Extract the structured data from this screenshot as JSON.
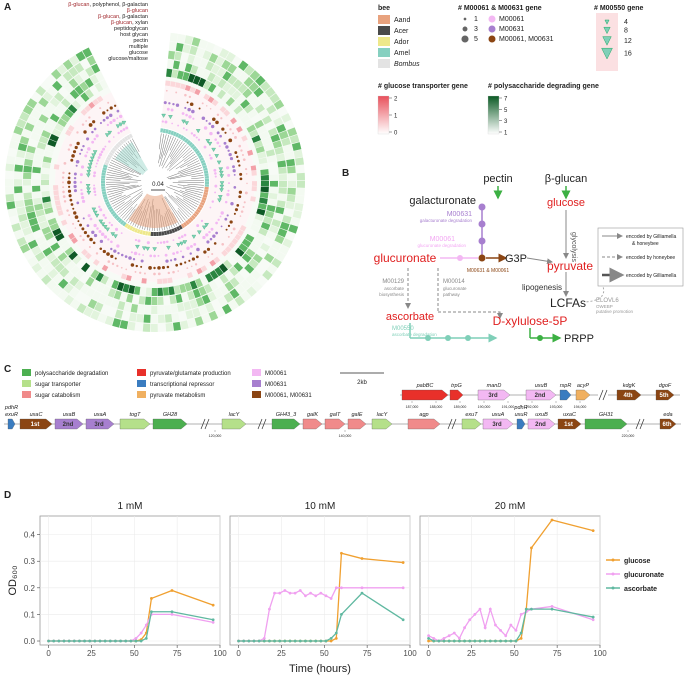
{
  "panel_a": {
    "label": "A",
    "ring_labels": [
      [
        "β-glucan",
        ", polyphenol, β-galactan"
      ],
      [
        "β-glucan"
      ],
      [
        "β-glucan",
        ", β-galactan"
      ],
      [
        "β-glucan",
        ", xylan"
      ],
      [
        "peptidoglycan"
      ],
      [
        "host glycan"
      ],
      [
        "pectin"
      ],
      [
        "multiple"
      ],
      [
        "glucose"
      ],
      [
        "glucose/maltose"
      ]
    ],
    "tree_scale": "0.04",
    "bee_legend": {
      "title": "bee",
      "items": [
        {
          "name": "Aand",
          "color": "#e8a27e"
        },
        {
          "name": "Acer",
          "color": "#4a4a4a"
        },
        {
          "name": "Ador",
          "color": "#eee88a"
        },
        {
          "name": "Amel",
          "color": "#86d0c0"
        },
        {
          "name": "Bombus",
          "color": "#e3e3e3"
        }
      ]
    },
    "module_legend": {
      "title": "# M00061 & M00631 gene",
      "sizes": [
        1,
        3,
        5
      ],
      "items": [
        {
          "name": "M00061",
          "color": "#f3b8f3"
        },
        {
          "name": "M00631",
          "color": "#a77fcf"
        },
        {
          "name": "M00061, M00631",
          "color": "#8b4513"
        }
      ]
    },
    "m00550_legend": {
      "title": "# M00550 gene",
      "sizes": [
        4,
        8,
        12,
        16
      ],
      "color": "#7fcfb8"
    },
    "transporter_legend": {
      "title": "# glucose transporter gene",
      "ticks": [
        2,
        1,
        0
      ],
      "colors": [
        "#e8505b",
        "#ffffff"
      ]
    },
    "poly_legend": {
      "title": "# polysaccharide degrading gene",
      "ticks": [
        7,
        5,
        3,
        1
      ],
      "colors": [
        "#0b5a24",
        "#ffffff"
      ]
    }
  },
  "panel_b": {
    "label": "B",
    "labels": [
      "pectin",
      "β-glucan",
      "galacturonate",
      "glucose",
      "M00631",
      "galacturonate degradation",
      "M00061",
      "glucuronate degradation",
      "glycolysis",
      "G3P",
      "glucuronate",
      "pyruvate",
      "M00631 & M00061",
      "lipogenesis",
      "LCFAs",
      "M00129",
      "ascorbate",
      "biosynthesis",
      "M00014",
      "glucuronate",
      "pathway",
      "ELOVL6",
      "OWEBP",
      "putative promotion",
      "ascorbate",
      "M00550",
      "ascorbate degradation",
      "D-xylulose-5P",
      "PRPP"
    ],
    "legend": [
      "encoded by Gilliamella",
      "& honeybee",
      "encoded by honeybee",
      "encoded by Gilliamella"
    ]
  },
  "panel_c": {
    "label": "C",
    "legend": [
      {
        "name": "polysaccharide degradation",
        "color": "#4caf50"
      },
      {
        "name": "sugar transporter",
        "color": "#b5e08a"
      },
      {
        "name": "sugar catabolism",
        "color": "#f08a8a"
      },
      {
        "name": "pyruvate/glutamate production",
        "color": "#e8302a"
      },
      {
        "name": "transcriptional repressor",
        "color": "#3a7cc0"
      },
      {
        "name": "pyruvate metabolism",
        "color": "#f0b060"
      },
      {
        "name": "M00061",
        "color": "#f3b8f3"
      },
      {
        "name": "M00631",
        "color": "#a77fcf"
      },
      {
        "name": "M00061, M00631",
        "color": "#8b4513"
      }
    ],
    "scale": "2kb",
    "top_genes": [
      {
        "name": "pabBC",
        "color": "#e8302a"
      },
      {
        "name": "trpG",
        "color": "#e8302a"
      },
      {
        "name": "manD",
        "rank": "3rd",
        "color": "#f3b8f3"
      },
      {
        "name": "uxuB",
        "rank": "2nd",
        "color": "#f3b8f3"
      },
      {
        "name": "rspR",
        "color": "#3a7cc0"
      },
      {
        "name": "acyP",
        "color": "#f0b060"
      },
      {
        "name": "kdgK",
        "rank": "4th",
        "color": "#8b4513"
      },
      {
        "name": "dgoF",
        "rank": "5th",
        "color": "#8b4513"
      }
    ],
    "top_ticks": [
      "187,000",
      "188,000",
      "189,000",
      "190,000",
      "191,000",
      "192,000",
      "193,000",
      "194,000"
    ],
    "bottom_genes": [
      {
        "name": "exuR",
        "above": "pdhR",
        "color": "#3a7cc0"
      },
      {
        "name": "uxaC",
        "rank": "1st",
        "color": "#8b4513"
      },
      {
        "name": "uxaB",
        "rank": "2nd",
        "color": "#a77fcf"
      },
      {
        "name": "uxaA",
        "rank": "3rd",
        "color": "#a77fcf"
      },
      {
        "name": "togT",
        "color": "#b5e08a"
      },
      {
        "name": "GH28",
        "color": "#4caf50"
      },
      {
        "name": "lacY",
        "color": "#b5e08a"
      },
      {
        "name": "GH43_3",
        "color": "#4caf50"
      },
      {
        "name": "galK",
        "color": "#f08a8a"
      },
      {
        "name": "galT",
        "color": "#f08a8a"
      },
      {
        "name": "galE",
        "color": "#f08a8a"
      },
      {
        "name": "lacY",
        "color": "#b5e08a"
      },
      {
        "name": "agp",
        "color": "#f08a8a"
      },
      {
        "name": "exuT",
        "color": "#b5e08a"
      },
      {
        "name": "uxuA",
        "rank": "3rd",
        "color": "#f3b8f3"
      },
      {
        "name": "uxuR",
        "above": "pdhR",
        "color": "#3a7cc0"
      },
      {
        "name": "uxuB",
        "rank": "2nd",
        "color": "#f3b8f3"
      },
      {
        "name": "uxaC",
        "rank": "1st",
        "color": "#8b4513"
      },
      {
        "name": "GH31",
        "color": "#4caf50"
      },
      {
        "name": "eda",
        "rank": "6th",
        "color": "#8b4513"
      }
    ],
    "bottom_ticks": [
      "120,000",
      "140,000",
      "220,000"
    ]
  },
  "panel_d": {
    "label": "D"
  },
  "chart_data": [
    {
      "type": "line",
      "title": "1 mM",
      "y_label": "OD₆₀₀",
      "x": [
        0,
        3,
        6,
        9,
        12,
        15,
        18,
        21,
        24,
        27,
        30,
        33,
        36,
        39,
        42,
        45,
        48,
        51,
        54,
        57,
        60,
        72,
        96
      ],
      "xlim": [
        -5,
        100
      ],
      "xticks": [
        0,
        25,
        50,
        75,
        100
      ],
      "ylim": [
        -0.015,
        0.47
      ],
      "yticks": [
        {
          "value": 0,
          "label": "0.0"
        },
        {
          "value": 0.1,
          "label": "0.1"
        },
        {
          "value": 0.2,
          "label": "0.2"
        },
        {
          "value": 0.3,
          "label": "0.3"
        },
        {
          "value": 0.4,
          "label": "0.4"
        }
      ],
      "grid": true,
      "series": [
        {
          "name": "glucose",
          "color": "#f0a030",
          "values": [
            0,
            0,
            0,
            0,
            0,
            0,
            0,
            0,
            0,
            0,
            0,
            0,
            0,
            0,
            0,
            0,
            0,
            0,
            0.005,
            0.03,
            0.16,
            0.19,
            0.135
          ]
        },
        {
          "name": "glucuronate",
          "color": "#f0a0f0",
          "values": [
            0,
            0,
            0,
            0,
            0,
            0,
            0,
            0,
            0,
            0,
            0,
            0,
            0,
            0,
            0,
            0,
            0,
            0.01,
            0.03,
            0.06,
            0.1,
            0.1,
            0.07
          ]
        },
        {
          "name": "ascorbate",
          "color": "#5fb8a0",
          "values": [
            0,
            0,
            0,
            0,
            0,
            0,
            0,
            0,
            0,
            0,
            0,
            0,
            0,
            0,
            0,
            0,
            0,
            0,
            0,
            0.01,
            0.11,
            0.11,
            0.08
          ]
        }
      ]
    },
    {
      "type": "line",
      "title": "10 mM",
      "x_label": "Time (hours)",
      "x": [
        0,
        3,
        6,
        9,
        12,
        15,
        18,
        21,
        24,
        27,
        30,
        33,
        36,
        39,
        42,
        45,
        48,
        51,
        54,
        57,
        60,
        72,
        96
      ],
      "xlim": [
        -5,
        100
      ],
      "xticks": [
        0,
        25,
        50,
        75,
        100
      ],
      "ylim": [
        -0.015,
        0.47
      ],
      "yticks": [
        {
          "value": 0,
          "label": "0.0"
        },
        {
          "value": 0.1,
          "label": "0.1"
        },
        {
          "value": 0.2,
          "label": "0.2"
        },
        {
          "value": 0.3,
          "label": "0.3"
        },
        {
          "value": 0.4,
          "label": "0.4"
        }
      ],
      "grid": true,
      "series": [
        {
          "name": "glucose",
          "color": "#f0a030",
          "values": [
            0,
            0,
            0,
            0,
            0,
            0,
            0,
            0,
            0,
            0,
            0,
            0,
            0,
            0,
            0,
            0,
            0,
            0,
            0,
            0.01,
            0.33,
            0.31,
            0.295
          ]
        },
        {
          "name": "glucuronate",
          "color": "#f0a0f0",
          "values": [
            0,
            0,
            0,
            0,
            0,
            0.01,
            0.12,
            0.18,
            0.18,
            0.19,
            0.18,
            0.18,
            0.19,
            0.17,
            0.18,
            0.17,
            0.18,
            0.17,
            0.16,
            0.2,
            0.2,
            0.2,
            0.2
          ]
        },
        {
          "name": "ascorbate",
          "color": "#5fb8a0",
          "values": [
            0,
            0,
            0,
            0,
            0,
            0,
            0,
            0,
            0,
            0,
            0,
            0,
            0,
            0,
            0,
            0,
            0,
            0,
            0.01,
            0.03,
            0.1,
            0.18,
            0.08
          ]
        }
      ]
    },
    {
      "type": "line",
      "title": "20 mM",
      "legend": "right",
      "x": [
        0,
        3,
        6,
        9,
        12,
        15,
        18,
        21,
        24,
        27,
        30,
        33,
        36,
        39,
        42,
        45,
        48,
        51,
        54,
        57,
        60,
        72,
        96
      ],
      "xlim": [
        -5,
        100
      ],
      "xticks": [
        0,
        25,
        50,
        75,
        100
      ],
      "ylim": [
        -0.015,
        0.47
      ],
      "yticks": [
        {
          "value": 0,
          "label": "0.0"
        },
        {
          "value": 0.1,
          "label": "0.1"
        },
        {
          "value": 0.2,
          "label": "0.2"
        },
        {
          "value": 0.3,
          "label": "0.3"
        },
        {
          "value": 0.4,
          "label": "0.4"
        }
      ],
      "grid": true,
      "series": [
        {
          "name": "glucose",
          "color": "#f0a030",
          "values": [
            0,
            0,
            0,
            0,
            0,
            0,
            0,
            0,
            0,
            0,
            0,
            0,
            0,
            0,
            0,
            0,
            0,
            0,
            0.01,
            0.12,
            0.35,
            0.455,
            0.415
          ]
        },
        {
          "name": "glucuronate",
          "color": "#f0a0f0",
          "values": [
            0.02,
            0.01,
            0,
            0.01,
            0.02,
            0.03,
            0.01,
            0.05,
            0.08,
            0.1,
            0.12,
            0.05,
            0.12,
            0.06,
            0.04,
            0.02,
            0.06,
            0.04,
            0.1,
            0.11,
            0.12,
            0.13,
            0.08
          ]
        },
        {
          "name": "ascorbate",
          "color": "#5fb8a0",
          "values": [
            0.01,
            0,
            0,
            0,
            0,
            0,
            0,
            0,
            0,
            0,
            0,
            0,
            0,
            0,
            0,
            0,
            0,
            0,
            0.03,
            0.12,
            0.12,
            0.12,
            0.09
          ]
        }
      ]
    }
  ]
}
